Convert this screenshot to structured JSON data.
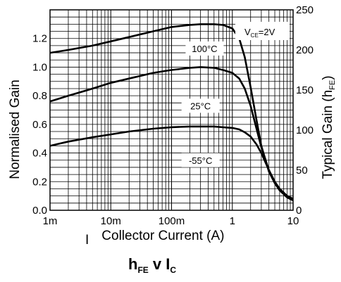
{
  "chart_data": {
    "type": "line",
    "title": "hFE v IC",
    "title_parts": {
      "main": "h",
      "main_sub": "FE",
      "mid": " v I",
      "mid_sub": "C"
    },
    "xlabel_parts": {
      "symbol": "I",
      "symbol_sub": "C",
      "text": "Collector Current (A)"
    },
    "ylabel": "Normalised Gain",
    "y2label_parts": {
      "text": "Typical Gain (h",
      "sub": "FE",
      "close": ")"
    },
    "x_scale": "log",
    "xlim": [
      0.001,
      10
    ],
    "ylim": [
      0,
      1.4
    ],
    "y2lim": [
      0,
      250
    ],
    "x_ticks": [
      {
        "value": 0.001,
        "label": "1m"
      },
      {
        "value": 0.01,
        "label": "10m"
      },
      {
        "value": 0.1,
        "label": "100m"
      },
      {
        "value": 1,
        "label": "1"
      },
      {
        "value": 10,
        "label": "10"
      }
    ],
    "y_ticks": [
      {
        "value": 0.0,
        "label": "0.0"
      },
      {
        "value": 0.2,
        "label": "0.2"
      },
      {
        "value": 0.4,
        "label": "0.4"
      },
      {
        "value": 0.6,
        "label": "0.6"
      },
      {
        "value": 0.8,
        "label": "0.8"
      },
      {
        "value": 1.0,
        "label": "1.0"
      },
      {
        "value": 1.2,
        "label": "1.2"
      }
    ],
    "y2_ticks": [
      {
        "value": 0,
        "label": "0"
      },
      {
        "value": 50,
        "label": "50"
      },
      {
        "value": 100,
        "label": "100"
      },
      {
        "value": 150,
        "label": "150"
      },
      {
        "value": 200,
        "label": "200"
      },
      {
        "value": 250,
        "label": "250"
      }
    ],
    "grid": true,
    "condition_parts": {
      "v": "V",
      "sub": "CE",
      "rest": "=2V"
    },
    "series": [
      {
        "name": "100°C",
        "x": [
          0.001,
          0.002,
          0.005,
          0.01,
          0.02,
          0.05,
          0.1,
          0.2,
          0.3,
          0.5,
          0.7,
          1.0,
          1.3,
          1.6,
          2.0,
          2.5,
          3.0,
          4.0,
          5.0,
          6.0,
          8.0,
          10.0
        ],
        "values": [
          1.1,
          1.12,
          1.15,
          1.18,
          1.21,
          1.25,
          1.28,
          1.295,
          1.3,
          1.3,
          1.295,
          1.27,
          1.2,
          1.07,
          0.86,
          0.63,
          0.45,
          0.27,
          0.19,
          0.14,
          0.09,
          0.07
        ]
      },
      {
        "name": "25°C",
        "x": [
          0.001,
          0.002,
          0.005,
          0.01,
          0.02,
          0.05,
          0.1,
          0.2,
          0.3,
          0.5,
          0.7,
          1.0,
          1.3,
          1.6,
          2.0,
          2.5,
          3.0,
          4.0,
          5.0,
          6.0,
          8.0,
          10.0
        ],
        "values": [
          0.76,
          0.8,
          0.85,
          0.89,
          0.92,
          0.96,
          0.98,
          0.995,
          1.0,
          0.995,
          0.98,
          0.96,
          0.92,
          0.85,
          0.73,
          0.57,
          0.44,
          0.28,
          0.2,
          0.15,
          0.1,
          0.08
        ]
      },
      {
        "name": "-55°C",
        "x": [
          0.001,
          0.002,
          0.005,
          0.01,
          0.02,
          0.05,
          0.1,
          0.2,
          0.3,
          0.5,
          0.7,
          1.0,
          1.3,
          1.6,
          2.0,
          2.5,
          3.0,
          4.0,
          5.0,
          6.0,
          8.0,
          10.0
        ],
        "values": [
          0.45,
          0.48,
          0.51,
          0.53,
          0.55,
          0.57,
          0.58,
          0.585,
          0.585,
          0.585,
          0.58,
          0.575,
          0.565,
          0.545,
          0.515,
          0.46,
          0.4,
          0.28,
          0.19,
          0.14,
          0.09,
          0.07
        ]
      }
    ]
  }
}
